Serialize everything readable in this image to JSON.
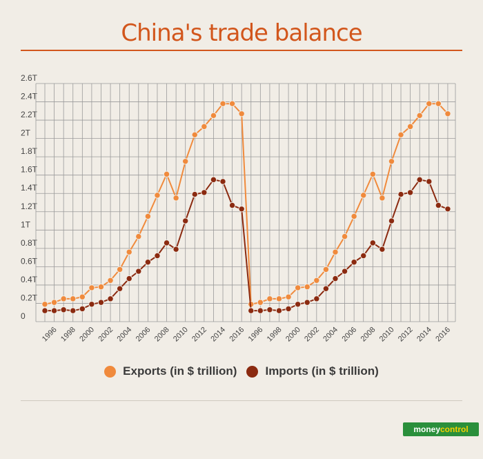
{
  "title": "China's trade balance",
  "brand": {
    "part1": "money",
    "part2": "control"
  },
  "colors": {
    "exports": "#f08a3c",
    "imports": "#8b2a10",
    "accent": "#d2561c",
    "grid": "#8a8a8a",
    "background": "#f1ede6"
  },
  "chart_data": {
    "type": "line",
    "title": "China's trade balance",
    "xlabel": "",
    "ylabel": "",
    "ylim": [
      0,
      2.6
    ],
    "grid": true,
    "legend_position": "bottom",
    "yticks": [
      {
        "value": 0,
        "label": "0"
      },
      {
        "value": 0.2,
        "label": "0.2T"
      },
      {
        "value": 0.4,
        "label": "0.4T"
      },
      {
        "value": 0.6,
        "label": "0.6T"
      },
      {
        "value": 0.8,
        "label": "0.8T"
      },
      {
        "value": 1.0,
        "label": "1T"
      },
      {
        "value": 1.2,
        "label": "1.2T"
      },
      {
        "value": 1.4,
        "label": "1.4T"
      },
      {
        "value": 1.6,
        "label": "1.6T"
      },
      {
        "value": 1.8,
        "label": "1.8T"
      },
      {
        "value": 2.0,
        "label": "2T"
      },
      {
        "value": 2.2,
        "label": "2.2T"
      },
      {
        "value": 2.4,
        "label": "2.4T"
      },
      {
        "value": 2.6,
        "label": "2.6T"
      }
    ],
    "x": [
      "1995",
      "1996",
      "1997",
      "1998",
      "1999",
      "2000",
      "2001",
      "2002",
      "2003",
      "2004",
      "2005",
      "2006",
      "2007",
      "2008",
      "2009",
      "2010",
      "2011",
      "2012",
      "2013",
      "2014",
      "2015",
      "2016",
      "1995",
      "1996",
      "1997",
      "1998",
      "1999",
      "2000",
      "2001",
      "2002",
      "2003",
      "2004",
      "2005",
      "2006",
      "2007",
      "2008",
      "2009",
      "2010",
      "2011",
      "2012",
      "2013",
      "2014",
      "2015",
      "2016"
    ],
    "xtick_labels": [
      "1996",
      "1998",
      "2000",
      "2002",
      "2004",
      "2006",
      "2008",
      "2010",
      "2012",
      "2014",
      "2016",
      "1996",
      "1998",
      "2000",
      "2002",
      "2004",
      "2006",
      "2008",
      "2010",
      "2012",
      "2014",
      "2016"
    ],
    "series": [
      {
        "name": "Exports (in $ trillion)",
        "values": [
          0.19,
          0.21,
          0.25,
          0.25,
          0.27,
          0.37,
          0.38,
          0.45,
          0.57,
          0.76,
          0.93,
          1.15,
          1.38,
          1.61,
          1.35,
          1.75,
          2.04,
          2.13,
          2.25,
          2.38,
          2.38,
          2.27,
          0.19,
          0.21,
          0.25,
          0.25,
          0.27,
          0.37,
          0.38,
          0.45,
          0.57,
          0.76,
          0.93,
          1.15,
          1.38,
          1.61,
          1.35,
          1.75,
          2.04,
          2.13,
          2.25,
          2.38,
          2.38,
          2.27
        ]
      },
      {
        "name": "Imports (in $ trillion)",
        "values": [
          0.12,
          0.12,
          0.13,
          0.12,
          0.14,
          0.19,
          0.21,
          0.25,
          0.36,
          0.47,
          0.55,
          0.65,
          0.72,
          0.86,
          0.79,
          1.1,
          1.39,
          1.41,
          1.55,
          1.53,
          1.27,
          1.23,
          0.12,
          0.12,
          0.13,
          0.12,
          0.14,
          0.19,
          0.21,
          0.25,
          0.36,
          0.47,
          0.55,
          0.65,
          0.72,
          0.86,
          0.79,
          1.1,
          1.39,
          1.41,
          1.55,
          1.53,
          1.27,
          1.23
        ]
      }
    ]
  }
}
